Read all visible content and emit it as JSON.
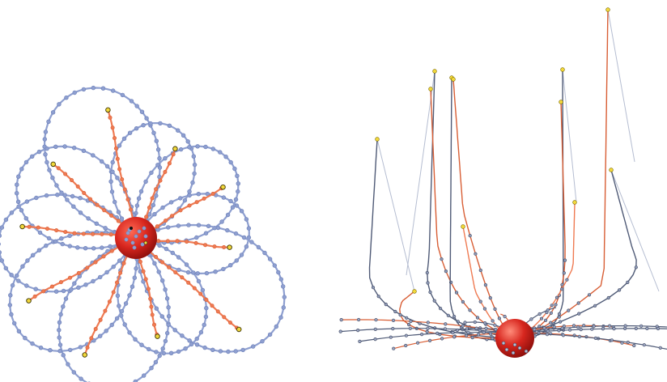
{
  "colors": {
    "background": "#ffffff",
    "outer_loop": "#8e9fd0",
    "outer_loop_dark": "#6c7fb8",
    "inner_path": "#ef7a52",
    "inner_path_dark": "#d85e35",
    "endpoint_fill": "#f2d83b",
    "endpoint_stroke": "#3a3300",
    "center_sphere": "#d7261e",
    "center_sphere_highlight": "#ff6a55",
    "center_sphere_shadow": "#8a0e0a",
    "ghost_line_3d": "#b5bdd1",
    "dark_line_3d": "#4f5a76"
  },
  "left_panel": {
    "view": "2d-top",
    "petal_count": 10,
    "orange_paths_with_endpoints": 10,
    "center": "hub-sphere",
    "icon": "flower-petal-graph"
  },
  "right_panel": {
    "view": "3d-perspective",
    "vertical_strand_count": 12,
    "center": "hub-sphere",
    "icon": "3d-spider-graph"
  }
}
